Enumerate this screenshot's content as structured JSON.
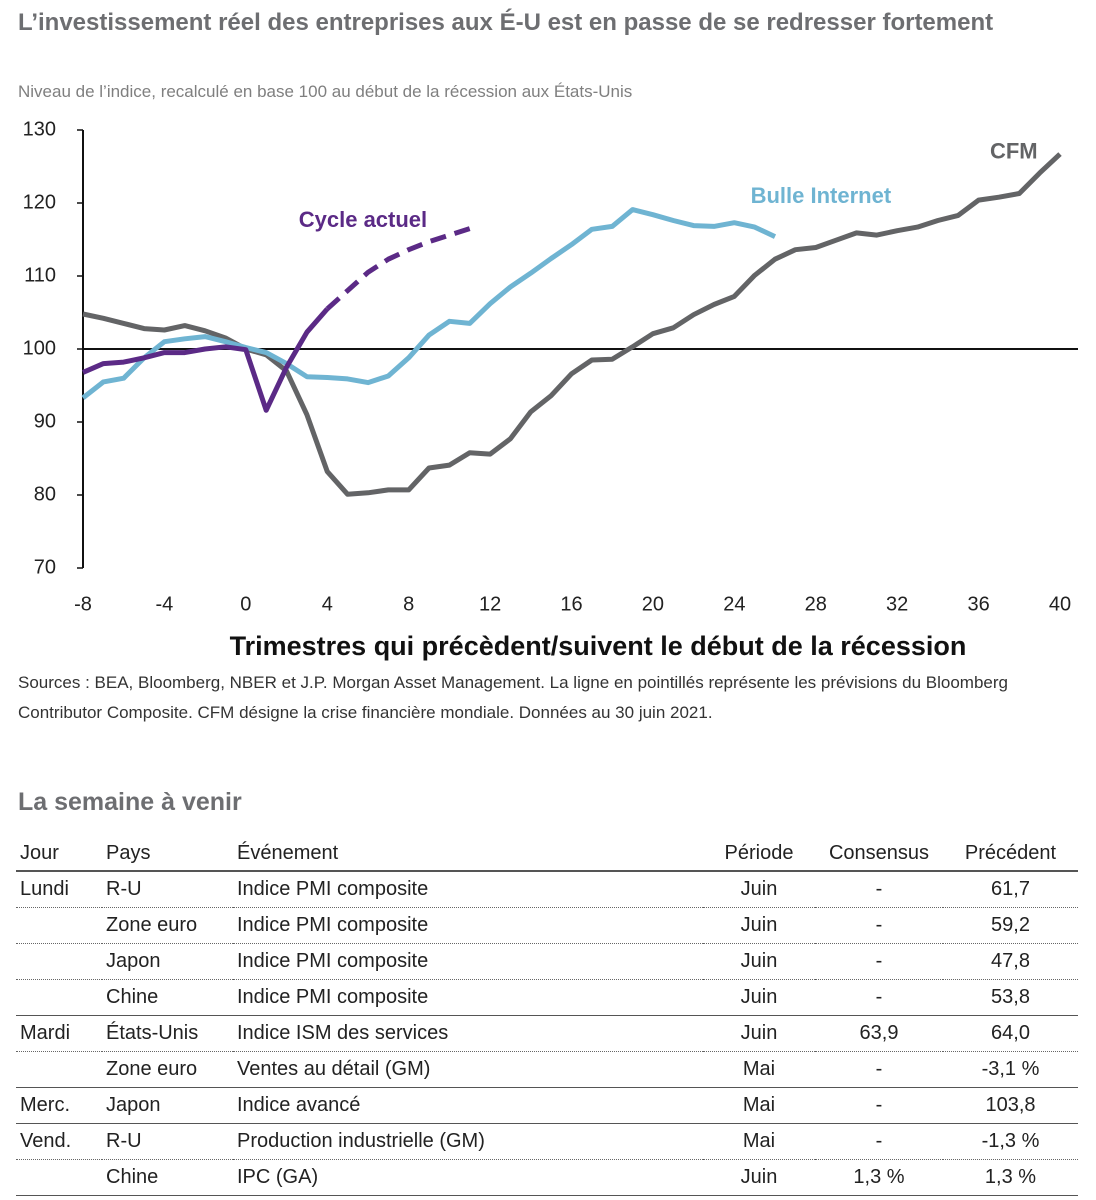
{
  "chart_data": {
    "type": "line",
    "title": "L’investissement réel des entreprises aux É-U est en passe de se redresser fortement",
    "subtitle": "Niveau de l’indice, recalculé en base 100  au début de la récession aux États-Unis",
    "x_label": "Trimestres qui précèdent/suivent le début de la récession",
    "x": [
      -8,
      -7,
      -6,
      -5,
      -4,
      -3,
      -2,
      -1,
      0,
      1,
      2,
      3,
      4,
      5,
      6,
      7,
      8,
      9,
      10,
      11,
      12,
      13,
      14,
      15,
      16,
      17,
      18,
      19,
      20,
      21,
      22,
      23,
      24,
      25,
      26,
      27,
      28,
      29,
      30,
      31,
      32,
      33,
      34,
      35,
      36,
      37,
      38,
      39,
      40
    ],
    "xlim": [
      -8,
      40
    ],
    "xticks": [
      -8,
      -4,
      0,
      4,
      8,
      12,
      16,
      20,
      24,
      28,
      32,
      36,
      40
    ],
    "ylim": [
      70,
      130
    ],
    "yticks": [
      70,
      80,
      90,
      100,
      110,
      120,
      130
    ],
    "baseline": 100,
    "series": [
      {
        "name": "CFM",
        "color": "#636466",
        "values": [
          104.8,
          104.2,
          103.5,
          102.8,
          102.6,
          103.2,
          102.5,
          101.5,
          100,
          99.2,
          97,
          91,
          83.2,
          80.1,
          80.3,
          80.7,
          80.7,
          83.7,
          84.1,
          85.8,
          85.6,
          87.7,
          91.4,
          93.6,
          96.6,
          98.5,
          98.6,
          100.3,
          102.1,
          102.9,
          104.7,
          106.1,
          107.2,
          110.1,
          112.3,
          113.6,
          113.9,
          114.9,
          115.9,
          115.6,
          116.2,
          116.7,
          117.6,
          118.3,
          120.4,
          120.8,
          121.3,
          124.1,
          126.7
        ]
      },
      {
        "name": "Bulle Internet",
        "color": "#6fb4d2",
        "values": [
          93.3,
          95.5,
          96,
          98.8,
          101,
          101.4,
          101.7,
          101,
          100.2,
          99.5,
          98,
          96.2,
          96.1,
          95.9,
          95.4,
          96.3,
          98.8,
          101.9,
          103.8,
          103.5,
          106.2,
          108.5,
          110.4,
          112.4,
          114.3,
          116.4,
          116.8,
          119.1,
          118.4,
          117.6,
          116.9,
          116.8,
          117.3,
          116.7,
          115.4,
          null,
          null,
          null,
          null,
          null,
          null,
          null,
          null,
          null,
          null,
          null,
          null,
          null,
          null
        ]
      },
      {
        "name": "Cycle actuel",
        "color": "#5b2a86",
        "dashed_from": 4,
        "values": [
          96.8,
          98,
          98.2,
          98.8,
          99.5,
          99.5,
          100,
          100.3,
          99.9,
          91.6,
          97.5,
          102.3,
          105.5,
          108,
          110.5,
          112.3,
          113.6,
          114.7,
          115.6,
          116.5,
          null,
          null,
          null,
          null,
          null,
          null,
          null,
          null,
          null,
          null,
          null,
          null,
          null,
          null,
          null,
          null,
          null,
          null,
          null,
          null,
          null,
          null,
          null,
          null,
          null,
          null,
          null,
          null,
          null
        ]
      }
    ],
    "sources": "Sources : BEA, Bloomberg, NBER et J.P. Morgan Asset Management. La ligne en pointillés représente les prévisions du Bloomberg Contributor Composite. CFM désigne la crise financière mondiale. Données au 30 juin 2021."
  },
  "table": {
    "title": "La semaine à venir",
    "headers": [
      "Jour",
      "Pays",
      "Événement",
      "Période",
      "Consensus",
      "Précédent"
    ],
    "rows": [
      [
        "Lundi",
        "R-U",
        "Indice PMI composite",
        "Juin",
        "-",
        "61,7"
      ],
      [
        null,
        "Zone euro",
        "Indice PMI composite",
        "Juin",
        "-",
        "59,2"
      ],
      [
        null,
        "Japon",
        "Indice PMI composite",
        "Juin",
        "-",
        "47,8"
      ],
      [
        null,
        "Chine",
        "Indice PMI composite",
        "Juin",
        "-",
        "53,8"
      ],
      [
        "Mardi",
        "États-Unis",
        "Indice ISM des services",
        "Juin",
        "63,9",
        "64,0"
      ],
      [
        null,
        "Zone euro",
        "Ventes au détail (GM)",
        "Mai",
        "-",
        "-3,1 %"
      ],
      [
        "Merc.",
        "Japon",
        "Indice avancé",
        "Mai",
        "-",
        "103,8"
      ],
      [
        "Vend.",
        "R-U",
        "Production industrielle (GM)",
        "Mai",
        "-",
        "-1,3 %"
      ],
      [
        null,
        "Chine",
        "IPC (GA)",
        "Juin",
        "1,3 %",
        "1,3 %"
      ]
    ]
  }
}
